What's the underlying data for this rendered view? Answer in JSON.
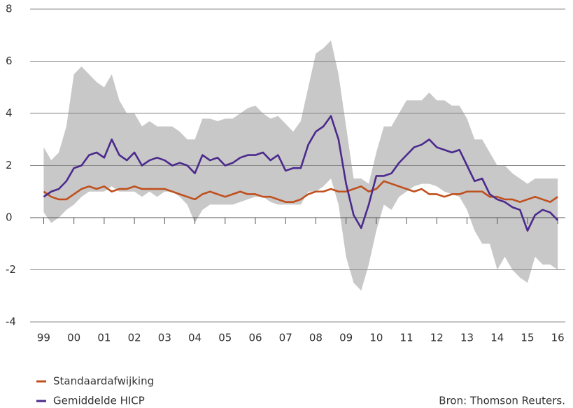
{
  "chart_data": {
    "type": "line",
    "x": [
      1999,
      1999.25,
      1999.5,
      1999.75,
      2000,
      2000.25,
      2000.5,
      2000.75,
      2001,
      2001.25,
      2001.5,
      2001.75,
      2002,
      2002.25,
      2002.5,
      2002.75,
      2003,
      2003.25,
      2003.5,
      2003.75,
      2004,
      2004.25,
      2004.5,
      2004.75,
      2005,
      2005.25,
      2005.5,
      2005.75,
      2006,
      2006.25,
      2006.5,
      2006.75,
      2007,
      2007.25,
      2007.5,
      2007.75,
      2008,
      2008.25,
      2008.5,
      2008.75,
      2009,
      2009.25,
      2009.5,
      2009.75,
      2010,
      2010.25,
      2010.5,
      2010.75,
      2011,
      2011.25,
      2011.5,
      2011.75,
      2012,
      2012.25,
      2012.5,
      2012.75,
      2013,
      2013.25,
      2013.5,
      2013.75,
      2014,
      2014.25,
      2014.5,
      2014.75,
      2015,
      2015.25,
      2015.5,
      2015.75,
      2016
    ],
    "band": {
      "color": "#c8c8c9",
      "upper": [
        2.7,
        2.2,
        2.5,
        3.5,
        5.5,
        5.8,
        5.5,
        5.2,
        5.0,
        5.5,
        4.5,
        4.0,
        4.0,
        3.5,
        3.7,
        3.5,
        3.5,
        3.5,
        3.3,
        3.0,
        3.0,
        3.8,
        3.8,
        3.7,
        3.8,
        3.8,
        4.0,
        4.2,
        4.3,
        4.0,
        3.8,
        3.9,
        3.6,
        3.3,
        3.7,
        5.0,
        6.3,
        6.5,
        6.8,
        5.5,
        3.5,
        1.5,
        1.5,
        1.3,
        2.5,
        3.5,
        3.5,
        4.0,
        4.5,
        4.5,
        4.5,
        4.8,
        4.5,
        4.5,
        4.3,
        4.3,
        3.8,
        3.0,
        3.0,
        2.5,
        2.0,
        2.0,
        1.7,
        1.5,
        1.3,
        1.5,
        1.5,
        1.5,
        1.5
      ],
      "lower": [
        0.2,
        -0.2,
        0.0,
        0.3,
        0.5,
        0.8,
        1.0,
        1.0,
        1.0,
        1.2,
        1.0,
        1.0,
        1.0,
        0.8,
        1.0,
        0.8,
        1.0,
        1.0,
        0.8,
        0.5,
        -0.2,
        0.3,
        0.5,
        0.5,
        0.5,
        0.5,
        0.6,
        0.7,
        0.8,
        0.8,
        0.6,
        0.5,
        0.5,
        0.5,
        0.5,
        1.0,
        1.0,
        1.2,
        1.5,
        0.5,
        -1.5,
        -2.5,
        -2.8,
        -1.8,
        -0.5,
        0.5,
        0.3,
        0.8,
        1.0,
        1.2,
        1.3,
        1.3,
        1.2,
        1.0,
        0.9,
        0.8,
        0.3,
        -0.5,
        -1.0,
        -1.0,
        -2.0,
        -1.5,
        -2.0,
        -2.3,
        -2.5,
        -1.5,
        -1.8,
        -1.8,
        -2.0
      ]
    },
    "series": [
      {
        "name": "Standaardafwijking",
        "color": "#c0501e",
        "values": [
          1.0,
          0.8,
          0.7,
          0.7,
          0.9,
          1.1,
          1.2,
          1.1,
          1.2,
          1.0,
          1.1,
          1.1,
          1.2,
          1.1,
          1.1,
          1.1,
          1.1,
          1.0,
          0.9,
          0.8,
          0.7,
          0.9,
          1.0,
          0.9,
          0.8,
          0.9,
          1.0,
          0.9,
          0.9,
          0.8,
          0.8,
          0.7,
          0.6,
          0.6,
          0.7,
          0.9,
          1.0,
          1.0,
          1.1,
          1.0,
          1.0,
          1.1,
          1.2,
          1.0,
          1.1,
          1.4,
          1.3,
          1.2,
          1.1,
          1.0,
          1.1,
          0.9,
          0.9,
          0.8,
          0.9,
          0.9,
          1.0,
          1.0,
          1.0,
          0.8,
          0.8,
          0.7,
          0.7,
          0.6,
          0.7,
          0.8,
          0.7,
          0.6,
          0.8
        ]
      },
      {
        "name": "Gemiddelde HICP",
        "color": "#4b2a8c",
        "values": [
          0.8,
          1.0,
          1.1,
          1.4,
          1.9,
          2.0,
          2.4,
          2.5,
          2.3,
          3.0,
          2.4,
          2.2,
          2.5,
          2.0,
          2.2,
          2.3,
          2.2,
          2.0,
          2.1,
          2.0,
          1.7,
          2.4,
          2.2,
          2.3,
          2.0,
          2.1,
          2.3,
          2.4,
          2.4,
          2.5,
          2.2,
          2.4,
          1.8,
          1.9,
          1.9,
          2.8,
          3.3,
          3.5,
          3.9,
          3.0,
          1.3,
          0.1,
          -0.4,
          0.5,
          1.6,
          1.6,
          1.7,
          2.1,
          2.4,
          2.7,
          2.8,
          3.0,
          2.7,
          2.6,
          2.5,
          2.6,
          2.0,
          1.4,
          1.5,
          0.9,
          0.7,
          0.6,
          0.4,
          0.3,
          -0.5,
          0.1,
          0.3,
          0.2,
          -0.1
        ]
      }
    ],
    "xlim": [
      1998.55,
      2016.25
    ],
    "xticks": [
      {
        "value": 1999,
        "label": "99"
      },
      {
        "value": 2000,
        "label": "00"
      },
      {
        "value": 2001,
        "label": "01"
      },
      {
        "value": 2002,
        "label": "02"
      },
      {
        "value": 2003,
        "label": "03"
      },
      {
        "value": 2004,
        "label": "04"
      },
      {
        "value": 2005,
        "label": "05"
      },
      {
        "value": 2006,
        "label": "06"
      },
      {
        "value": 2007,
        "label": "07"
      },
      {
        "value": 2008,
        "label": "08"
      },
      {
        "value": 2009,
        "label": "09"
      },
      {
        "value": 2010,
        "label": "10"
      },
      {
        "value": 2011,
        "label": "11"
      },
      {
        "value": 2012,
        "label": "12"
      },
      {
        "value": 2013,
        "label": "13"
      },
      {
        "value": 2014,
        "label": "14"
      },
      {
        "value": 2015,
        "label": "15"
      },
      {
        "value": 2016,
        "label": "16"
      }
    ],
    "ylim": [
      -4,
      8
    ],
    "yticks": [
      -4,
      -2,
      0,
      2,
      4,
      6,
      8
    ],
    "grid": true,
    "source": "Bron: Thomson Reuters."
  }
}
